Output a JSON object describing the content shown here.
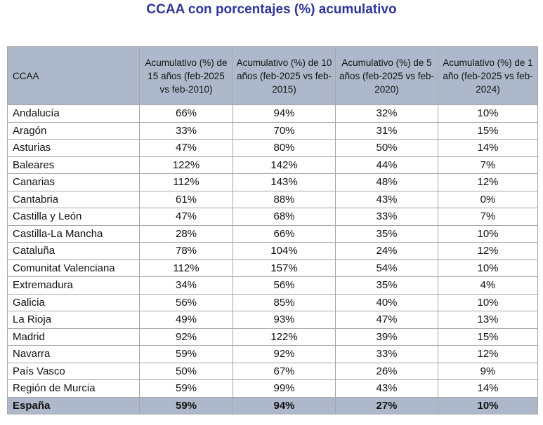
{
  "title": "CCAA con porcentajes (%) acumulativo",
  "colors": {
    "header_bg": "#adb9ca",
    "title": "#2f3699"
  },
  "columns": [
    "CCAA",
    "Acumulativo (%) de 15 años (feb-2025 vs feb-2010)",
    "Acumulativo (%) de 10 años (feb-2025 vs feb-2015)",
    "Acumulativo (%) de 5 años (feb-2025 vs feb-2020)",
    "Acumulativo (%) de 1 año (feb-2025 vs feb-2024)"
  ],
  "rows": [
    [
      "Andalucía",
      "66%",
      "94%",
      "32%",
      "10%"
    ],
    [
      "Aragón",
      "33%",
      "70%",
      "31%",
      "15%"
    ],
    [
      "Asturias",
      "47%",
      "80%",
      "50%",
      "14%"
    ],
    [
      "Baleares",
      "122%",
      "142%",
      "44%",
      "7%"
    ],
    [
      "Canarias",
      "112%",
      "143%",
      "48%",
      "12%"
    ],
    [
      "Cantabria",
      "61%",
      "88%",
      "43%",
      "0%"
    ],
    [
      "Castilla y León",
      "47%",
      "68%",
      "33%",
      "7%"
    ],
    [
      "Castilla-La Mancha",
      "28%",
      "66%",
      "35%",
      "10%"
    ],
    [
      "Cataluña",
      "78%",
      "104%",
      "24%",
      "12%"
    ],
    [
      "Comunitat Valenciana",
      "112%",
      "157%",
      "54%",
      "10%"
    ],
    [
      "Extremadura",
      "34%",
      "56%",
      "35%",
      "4%"
    ],
    [
      "Galicia",
      "56%",
      "85%",
      "40%",
      "10%"
    ],
    [
      "La Rioja",
      "49%",
      "93%",
      "47%",
      "13%"
    ],
    [
      "Madrid",
      "92%",
      "122%",
      "39%",
      "15%"
    ],
    [
      "Navarra",
      "59%",
      "92%",
      "33%",
      "12%"
    ],
    [
      "País Vasco",
      "50%",
      "67%",
      "26%",
      "9%"
    ],
    [
      "Región de Murcia",
      "59%",
      "99%",
      "43%",
      "14%"
    ]
  ],
  "total": [
    "España",
    "59%",
    "94%",
    "27%",
    "10%"
  ]
}
